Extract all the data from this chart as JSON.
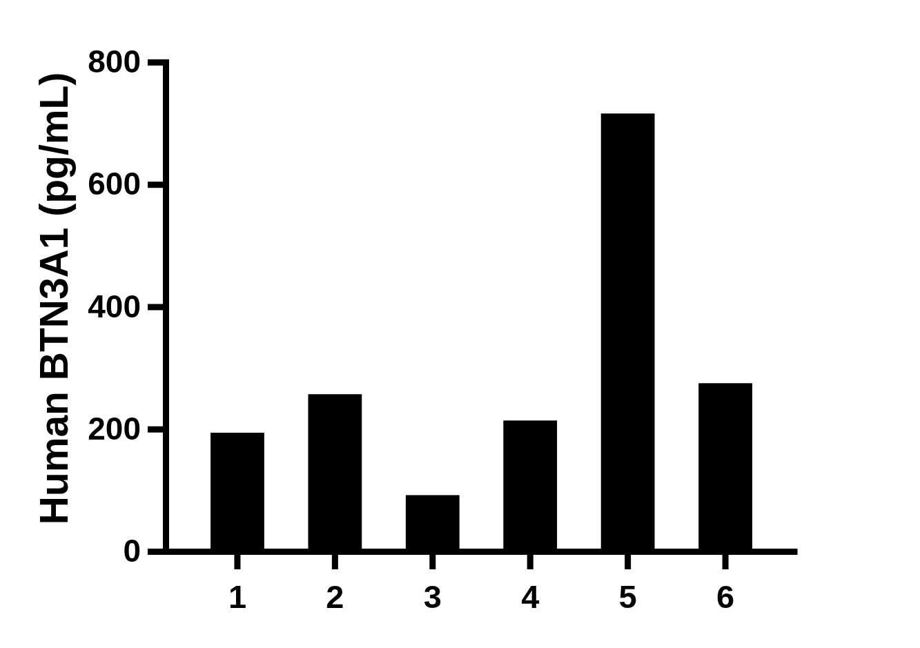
{
  "chart_data": {
    "type": "bar",
    "ylabel": "Human BTN3A1 (pg/mL)",
    "categories": [
      "1",
      "2",
      "3",
      "4",
      "5",
      "6"
    ],
    "values": [
      194,
      257,
      92,
      214,
      716,
      275
    ],
    "color": "#000000",
    "ylim": [
      0,
      800
    ],
    "yticks": [
      0,
      200,
      400,
      600,
      800
    ]
  }
}
